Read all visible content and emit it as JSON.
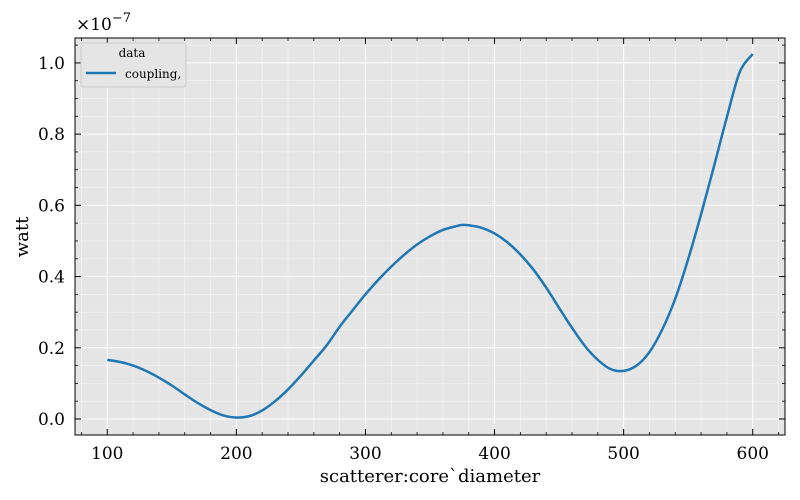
{
  "chart_data": {
    "type": "line",
    "xlabel": "scatterer:core`diameter",
    "ylabel": "watt",
    "y_offset_label": "×10",
    "y_offset_exponent": "−7",
    "xlim": [
      75,
      625
    ],
    "ylim": [
      -0.045,
      1.07
    ],
    "x_ticks": [
      100,
      200,
      300,
      400,
      500,
      600
    ],
    "x_tick_labels": [
      "100",
      "200",
      "300",
      "400",
      "500",
      "600"
    ],
    "y_ticks": [
      0.0,
      0.2,
      0.4,
      0.6,
      0.8,
      1.0
    ],
    "y_tick_labels": [
      "0.0",
      "0.2",
      "0.4",
      "0.6",
      "0.8",
      "1.0"
    ],
    "grid": true,
    "legend": {
      "title": "data",
      "placement": "top-left"
    },
    "series": [
      {
        "name": "coupling,",
        "color": "#1f77b4",
        "x": [
          100,
          110,
          120,
          130,
          140,
          150,
          160,
          170,
          180,
          190,
          200,
          210,
          220,
          230,
          240,
          250,
          260,
          270,
          280,
          290,
          300,
          310,
          320,
          330,
          340,
          350,
          360,
          370,
          375,
          380,
          390,
          400,
          410,
          420,
          430,
          440,
          450,
          460,
          470,
          480,
          490,
          500,
          510,
          520,
          530,
          540,
          550,
          560,
          570,
          580,
          590,
          600
        ],
        "values": [
          0.166,
          0.16,
          0.15,
          0.135,
          0.116,
          0.094,
          0.069,
          0.045,
          0.025,
          0.01,
          0.004,
          0.008,
          0.024,
          0.05,
          0.083,
          0.122,
          0.164,
          0.207,
          0.259,
          0.305,
          0.35,
          0.391,
          0.428,
          0.461,
          0.49,
          0.513,
          0.531,
          0.541,
          0.545,
          0.544,
          0.537,
          0.521,
          0.496,
          0.462,
          0.42,
          0.369,
          0.312,
          0.256,
          0.205,
          0.166,
          0.14,
          0.135,
          0.15,
          0.188,
          0.252,
          0.338,
          0.449,
          0.575,
          0.71,
          0.848,
          0.975,
          1.025
        ]
      }
    ]
  },
  "colors": {
    "plot_background": "#e5e5e5",
    "grid_major": "#ffffff",
    "line": "#1f77b4"
  }
}
